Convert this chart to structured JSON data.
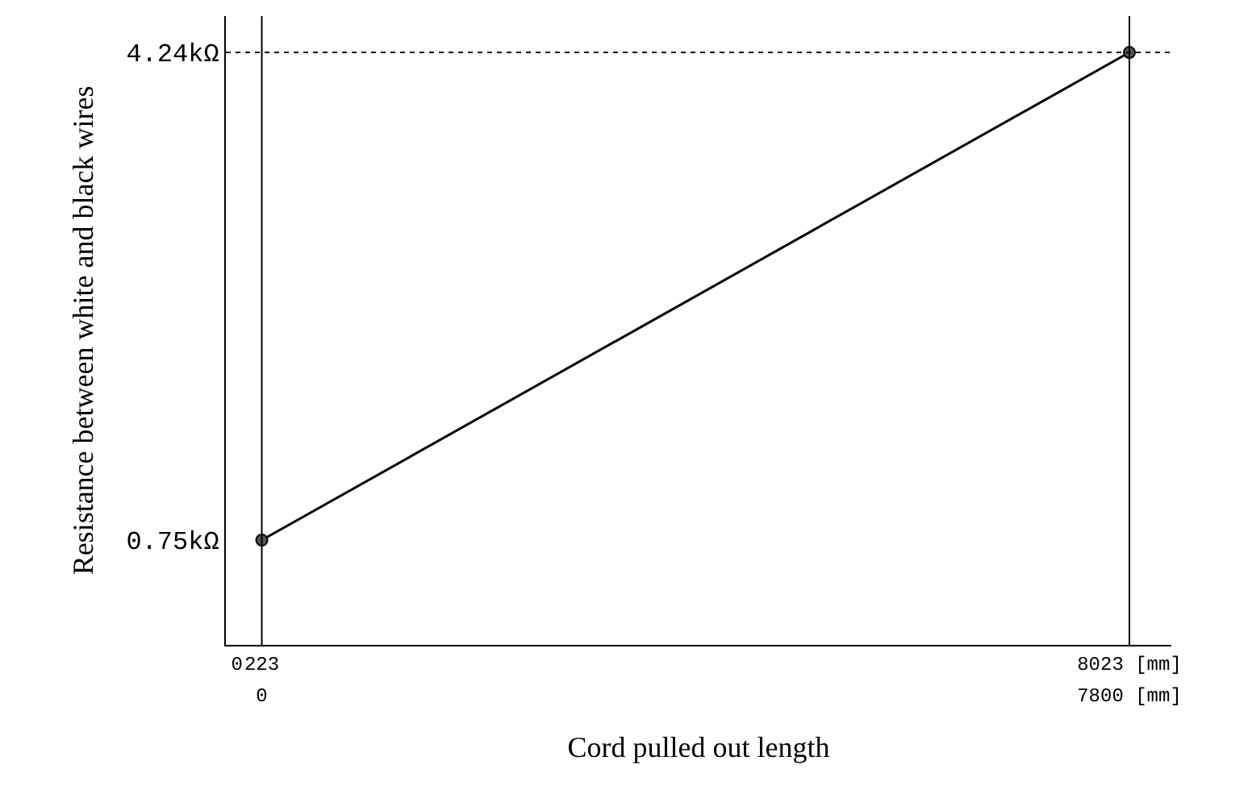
{
  "chart_data": {
    "type": "line",
    "xlabel": "Cord pulled out length",
    "ylabel": "Resistance between white and black wires",
    "x": [
      223,
      8023
    ],
    "values": [
      0.75,
      4.24
    ],
    "color": "#000000",
    "marker": "circle",
    "line_style": "solid",
    "xlim": [
      -100,
      8400
    ],
    "xticks": [
      0,
      223,
      {
        "value": 8023,
        "label": "8023 [mm]"
      }
    ],
    "x2lim": [
      -323,
      8177
    ],
    "x2ticks": [
      0,
      {
        "value": 7800,
        "label": "7800 [mm]"
      }
    ],
    "ylim": [
      0,
      4.5
    ],
    "yticks": [
      {
        "value": 0.75,
        "label": "0.75kΩ"
      },
      {
        "value": 4.24,
        "label": "4.24kΩ"
      }
    ],
    "ref_lines": [
      {
        "axis": "x",
        "value": 223,
        "color": "#000000",
        "line_style": "solid"
      },
      {
        "axis": "x",
        "value": 8023,
        "color": "#000000",
        "line_style": "solid"
      },
      {
        "axis": "y",
        "value": 4.24,
        "color": "#000000",
        "line_style": "dotted"
      }
    ],
    "legend": false
  }
}
